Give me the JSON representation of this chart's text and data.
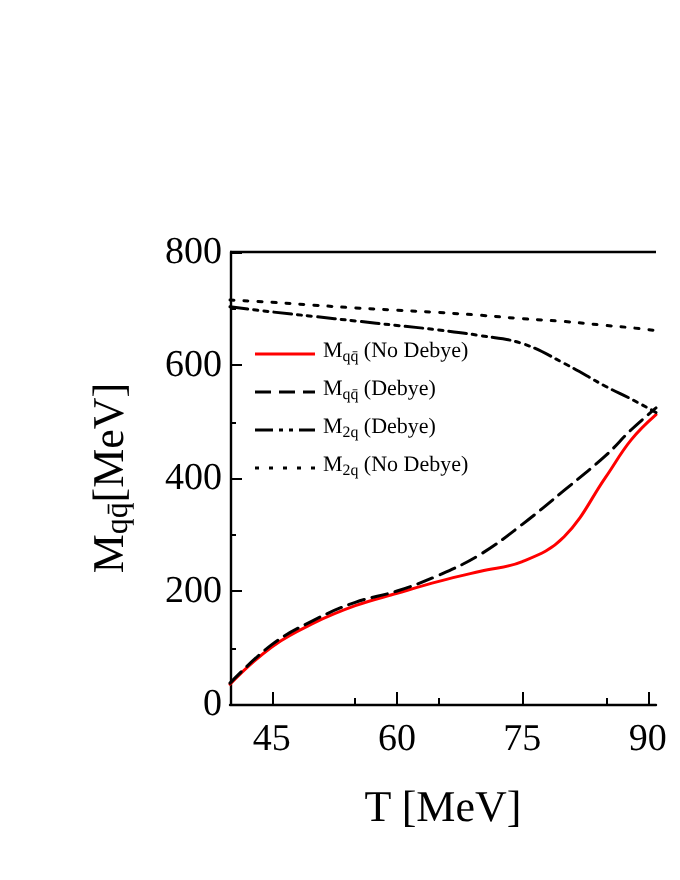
{
  "chart_data": {
    "type": "line",
    "xlabel": "T [MeV]",
    "ylabel": "M$_{qq̄}$[MeV]",
    "xlim": [
      40,
      91
    ],
    "xticks": [
      45,
      60,
      75,
      90
    ],
    "ylim": [
      0,
      800
    ],
    "yticks": [
      0,
      200,
      400,
      600,
      800
    ],
    "grid": false,
    "legend": "left",
    "marker": "none",
    "x": [
      40,
      45,
      50,
      55,
      60,
      65,
      70,
      75,
      80,
      85,
      88,
      91
    ],
    "series": [
      {
        "name": "M$_{qq̄}$ (No Debye)",
        "color": "#ff0000",
        "line_style": "solid",
        "values": [
          35,
          101,
          143,
          174,
          196,
          217,
          235,
          252,
          296,
          402,
          467,
          512
        ]
      },
      {
        "name": "M$_{qq̄}$ (Debye)",
        "color": "#000000",
        "line_style": "dashed",
        "values": [
          37,
          105,
          148,
          180,
          200,
          228,
          265,
          318,
          378,
          440,
          485,
          524
        ]
      },
      {
        "name": "M$_{2q}$ (Debye)",
        "color": "#000000",
        "line_style": "dashdotdot",
        "values": [
          703,
          694,
          686,
          678,
          670,
          662,
          652,
          638,
          603,
          562,
          540,
          516
        ]
      },
      {
        "name": "M$_{2q}$ (No Debye)",
        "color": "#000000",
        "line_style": "dotted",
        "values": [
          715,
          711,
          706,
          701,
          697,
          693,
          688,
          682,
          677,
          670,
          666,
          661
        ]
      }
    ]
  }
}
